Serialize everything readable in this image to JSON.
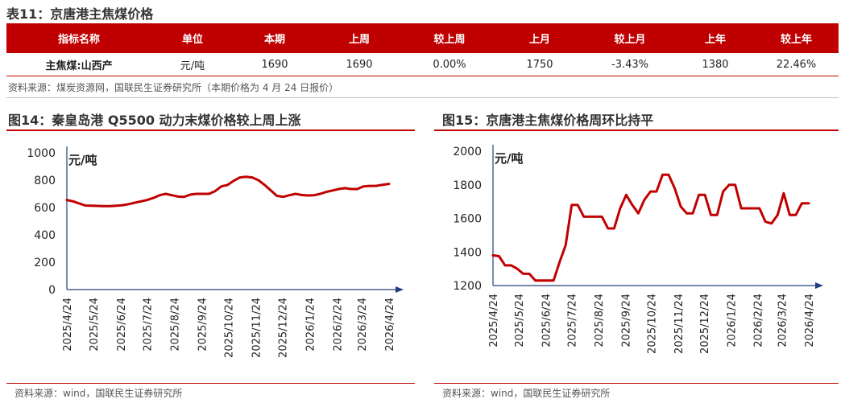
{
  "table_title": "表11：京唐港主焦煤价格",
  "table": {
    "headers": [
      "指标名称",
      "单位",
      "本期",
      "上周",
      "较上周",
      "上月",
      "较上月",
      "上年",
      "较上年"
    ],
    "row": [
      "主焦煤:山西产",
      "元/吨",
      "1690",
      "1690",
      "0.00%",
      "1750",
      "-3.43%",
      "1380",
      "22.46%"
    ]
  },
  "table_source": "资料来源：煤炭资源网，国联民生证券研究所（本期价格为 4 月 24 日报价）",
  "chart_source_left": "资料来源：wind，国联民生证券研究所",
  "chart_source_right": "资料来源：wind，国联民生证券研究所",
  "colors": {
    "accent": "#c00000",
    "axis": "#1f3f7f",
    "line": "#c00000"
  },
  "chart_data": [
    {
      "type": "line",
      "title": "图14：秦皇岛港 Q5500 动力末煤价格较上周上涨",
      "ylabel": "元/吨",
      "ylim": [
        0,
        1000
      ],
      "yticks": [
        0,
        200,
        400,
        600,
        800,
        1000
      ],
      "xlim": [
        "2025-04-24",
        "2026-04-24"
      ],
      "xtick_labels": [
        "2025/4/24",
        "2025/5/24",
        "2025/6/24",
        "2025/7/24",
        "2025/8/24",
        "2025/9/24",
        "2025/10/24",
        "2025/11/24",
        "2025/12/24",
        "2026/1/24",
        "2026/2/24",
        "2026/3/24",
        "2026/4/24"
      ],
      "grid": false,
      "series": [
        {
          "points": [
            [
              "2025-04-24",
              655
            ],
            [
              "2025-05-01",
              645
            ],
            [
              "2025-05-08",
              630
            ],
            [
              "2025-05-15",
              615
            ],
            [
              "2025-05-22",
              613
            ],
            [
              "2025-05-29",
              612
            ],
            [
              "2025-06-05",
              610
            ],
            [
              "2025-06-12",
              610
            ],
            [
              "2025-06-19",
              613
            ],
            [
              "2025-06-26",
              617
            ],
            [
              "2025-07-03",
              625
            ],
            [
              "2025-07-10",
              635
            ],
            [
              "2025-07-17",
              645
            ],
            [
              "2025-07-24",
              655
            ],
            [
              "2025-07-31",
              670
            ],
            [
              "2025-08-07",
              690
            ],
            [
              "2025-08-14",
              700
            ],
            [
              "2025-08-21",
              690
            ],
            [
              "2025-08-28",
              680
            ],
            [
              "2025-09-04",
              678
            ],
            [
              "2025-09-11",
              695
            ],
            [
              "2025-09-18",
              700
            ],
            [
              "2025-09-25",
              700
            ],
            [
              "2025-10-02",
              700
            ],
            [
              "2025-10-09",
              720
            ],
            [
              "2025-10-16",
              755
            ],
            [
              "2025-10-23",
              765
            ],
            [
              "2025-10-30",
              795
            ],
            [
              "2025-11-06",
              820
            ],
            [
              "2025-11-13",
              825
            ],
            [
              "2025-11-20",
              820
            ],
            [
              "2025-11-27",
              800
            ],
            [
              "2025-12-04",
              765
            ],
            [
              "2025-12-11",
              725
            ],
            [
              "2025-12-18",
              685
            ],
            [
              "2025-12-25",
              678
            ],
            [
              "2026-01-01",
              690
            ],
            [
              "2026-01-08",
              700
            ],
            [
              "2026-01-15",
              692
            ],
            [
              "2026-01-22",
              688
            ],
            [
              "2026-01-29",
              690
            ],
            [
              "2026-02-05",
              700
            ],
            [
              "2026-02-12",
              715
            ],
            [
              "2026-02-19",
              725
            ],
            [
              "2026-02-26",
              735
            ],
            [
              "2026-03-05",
              742
            ],
            [
              "2026-03-12",
              735
            ],
            [
              "2026-03-19",
              735
            ],
            [
              "2026-03-26",
              755
            ],
            [
              "2026-04-02",
              758
            ],
            [
              "2026-04-09",
              758
            ],
            [
              "2026-04-16",
              765
            ],
            [
              "2026-04-24",
              773
            ]
          ]
        }
      ]
    },
    {
      "type": "line",
      "title": "图15：京唐港主焦煤价格周环比持平",
      "ylabel": "元/吨",
      "ylim": [
        1200,
        2000
      ],
      "yticks": [
        1200,
        1400,
        1600,
        1800,
        2000
      ],
      "xlim": [
        "2025-04-24",
        "2026-04-24"
      ],
      "xtick_labels": [
        "2025/4/24",
        "2025/5/24",
        "2025/6/24",
        "2025/7/24",
        "2025/8/24",
        "2025/9/24",
        "2025/10/24",
        "2025/11/24",
        "2025/12/24",
        "2026/1/24",
        "2026/2/24",
        "2026/3/24",
        "2026/4/24"
      ],
      "grid": false,
      "series": [
        {
          "points": [
            [
              "2025-04-24",
              1380
            ],
            [
              "2025-05-01",
              1375
            ],
            [
              "2025-05-08",
              1320
            ],
            [
              "2025-05-15",
              1320
            ],
            [
              "2025-05-22",
              1300
            ],
            [
              "2025-05-29",
              1270
            ],
            [
              "2025-06-05",
              1270
            ],
            [
              "2025-06-12",
              1230
            ],
            [
              "2025-06-19",
              1230
            ],
            [
              "2025-06-26",
              1230
            ],
            [
              "2025-07-03",
              1230
            ],
            [
              "2025-07-10",
              1340
            ],
            [
              "2025-07-17",
              1440
            ],
            [
              "2025-07-24",
              1680
            ],
            [
              "2025-07-31",
              1680
            ],
            [
              "2025-08-07",
              1610
            ],
            [
              "2025-08-14",
              1610
            ],
            [
              "2025-08-21",
              1610
            ],
            [
              "2025-08-28",
              1610
            ],
            [
              "2025-09-04",
              1540
            ],
            [
              "2025-09-11",
              1540
            ],
            [
              "2025-09-18",
              1660
            ],
            [
              "2025-09-25",
              1740
            ],
            [
              "2025-10-02",
              1680
            ],
            [
              "2025-10-09",
              1630
            ],
            [
              "2025-10-16",
              1710
            ],
            [
              "2025-10-23",
              1760
            ],
            [
              "2025-10-30",
              1760
            ],
            [
              "2025-11-06",
              1860
            ],
            [
              "2025-11-13",
              1860
            ],
            [
              "2025-11-20",
              1780
            ],
            [
              "2025-11-27",
              1670
            ],
            [
              "2025-12-04",
              1630
            ],
            [
              "2025-12-11",
              1630
            ],
            [
              "2025-12-18",
              1740
            ],
            [
              "2025-12-25",
              1740
            ],
            [
              "2026-01-01",
              1620
            ],
            [
              "2026-01-08",
              1620
            ],
            [
              "2026-01-15",
              1760
            ],
            [
              "2026-01-22",
              1800
            ],
            [
              "2026-01-29",
              1800
            ],
            [
              "2026-02-05",
              1660
            ],
            [
              "2026-02-12",
              1660
            ],
            [
              "2026-02-19",
              1660
            ],
            [
              "2026-02-26",
              1660
            ],
            [
              "2026-03-05",
              1580
            ],
            [
              "2026-03-12",
              1570
            ],
            [
              "2026-03-19",
              1620
            ],
            [
              "2026-03-26",
              1750
            ],
            [
              "2026-04-02",
              1620
            ],
            [
              "2026-04-09",
              1620
            ],
            [
              "2026-04-16",
              1690
            ],
            [
              "2026-04-24",
              1690
            ]
          ]
        }
      ]
    }
  ]
}
